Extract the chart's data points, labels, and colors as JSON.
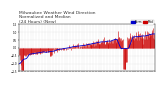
{
  "title_line1": "Milwaukee Weather Wind Direction",
  "title_line2": "Normalized and Median",
  "title_line3": "(24 Hours) (New)",
  "title_fontsize": 3.2,
  "bg_color": "#ffffff",
  "plot_bg_color": "#ffffff",
  "grid_color": "#bbbbbb",
  "bar_color": "#cc0000",
  "median_color": "#0000cc",
  "xlim": [
    0,
    288
  ],
  "ylim": [
    -1.5,
    1.5
  ],
  "legend_label_norm": "Normalized",
  "legend_label_median": "Median",
  "legend_norm_color": "#0000cc",
  "legend_median_color": "#cc0000",
  "n_points": 288,
  "seed": 42
}
